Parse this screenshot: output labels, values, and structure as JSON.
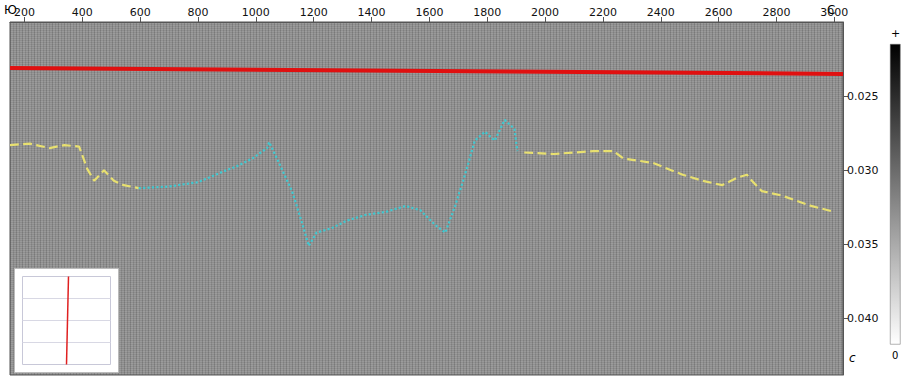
{
  "chart_data": {
    "type": "line",
    "xlim": [
      150,
      3030
    ],
    "xticks": [
      200,
      400,
      600,
      800,
      1000,
      1200,
      1400,
      1600,
      1800,
      2000,
      2200,
      2400,
      2600,
      2800,
      3000
    ],
    "ylim": [
      0.0438,
      0.02
    ],
    "yticks": [
      0.025,
      {
        "value": 0.03,
        "label": "0.030"
      },
      0.035,
      {
        "value": 0.04,
        "label": "0.040"
      }
    ],
    "y_label": "с",
    "direction_labels": [
      "Ю",
      "С"
    ],
    "colorbar": {
      "labels": [
        "+",
        "0"
      ]
    },
    "grid": false,
    "series": [
      {
        "color": "#e01010",
        "line_style": "solid",
        "marker": "none",
        "x": [
          150,
          3030
        ],
        "values": [
          0.0231,
          0.0235
        ]
      },
      {
        "color": "#e8e070",
        "line_style": "dashed",
        "marker": "none",
        "x": [
          150,
          218,
          287,
          338,
          389,
          417,
          441,
          475,
          509,
          543,
          595
        ],
        "values": [
          0.0283,
          0.0282,
          0.0285,
          0.0283,
          0.0284,
          0.0299,
          0.0307,
          0.03,
          0.0307,
          0.031,
          0.0312
        ]
      },
      {
        "color": "#40c8d0",
        "line_style": "dotted",
        "marker": "none",
        "x": [
          595,
          697,
          800,
          885,
          937,
          988,
          1039,
          1046,
          1073,
          1125,
          1159,
          1183,
          1210,
          1262,
          1313,
          1381,
          1450,
          1518,
          1569,
          1621,
          1655,
          1689,
          1723,
          1757,
          1792,
          1826,
          1860,
          1894,
          1904
        ],
        "values": [
          0.0312,
          0.0311,
          0.0308,
          0.0301,
          0.0297,
          0.0292,
          0.0285,
          0.0281,
          0.0292,
          0.0314,
          0.0335,
          0.0351,
          0.0342,
          0.0339,
          0.0334,
          0.033,
          0.0328,
          0.0324,
          0.0327,
          0.0337,
          0.0342,
          0.0324,
          0.0303,
          0.028,
          0.0274,
          0.028,
          0.0266,
          0.0272,
          0.0287
        ]
      },
      {
        "color": "#e8e070",
        "line_style": "dashed",
        "marker": "none",
        "x": [
          1928,
          2031,
          2168,
          2236,
          2270,
          2373,
          2476,
          2544,
          2612,
          2664,
          2698,
          2715,
          2749,
          2818,
          2920,
          3000
        ],
        "values": [
          0.0288,
          0.0289,
          0.0287,
          0.0287,
          0.0292,
          0.0295,
          0.0303,
          0.0307,
          0.031,
          0.0305,
          0.0303,
          0.0307,
          0.0314,
          0.0317,
          0.0324,
          0.0328
        ]
      }
    ]
  }
}
